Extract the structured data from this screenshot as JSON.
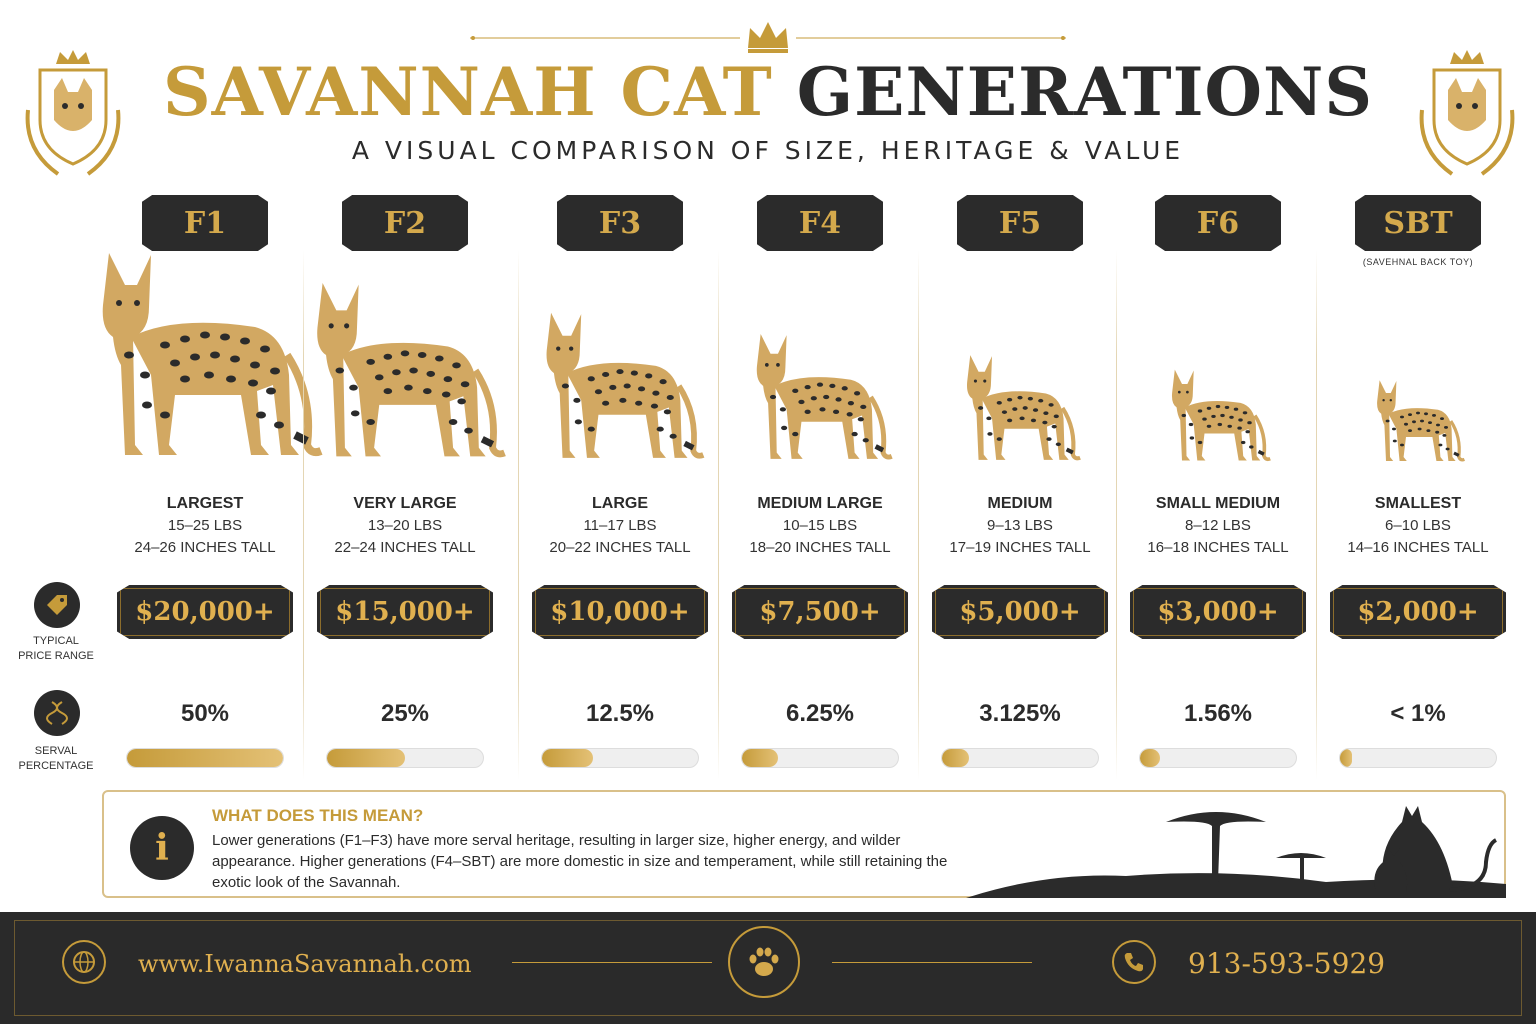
{
  "title": {
    "part1": "SAVANNAH CAT",
    "part2": "GENERATIONS"
  },
  "subtitle": "A VISUAL COMPARISON OF SIZE, HERITAGE & VALUE",
  "row_labels": {
    "price": "TYPICAL\nPRICE RANGE",
    "serval": "SERVAL\nPERCENTAGE"
  },
  "generations": [
    {
      "gen": "F1",
      "note": "",
      "size": "LARGEST",
      "weight": "15–25 LBS",
      "height": "24–26 INCHES TALL",
      "price": "$20,000+",
      "serval": "50%",
      "fill": 1.0
    },
    {
      "gen": "F2",
      "note": "",
      "size": "VERY LARGE",
      "weight": "13–20 LBS",
      "height": "22–24 INCHES TALL",
      "price": "$15,000+",
      "serval": "25%",
      "fill": 0.5
    },
    {
      "gen": "F3",
      "note": "",
      "size": "LARGE",
      "weight": "11–17 LBS",
      "height": "20–22 INCHES TALL",
      "price": "$10,000+",
      "serval": "12.5%",
      "fill": 0.33
    },
    {
      "gen": "F4",
      "note": "",
      "size": "MEDIUM LARGE",
      "weight": "10–15 LBS",
      "height": "18–20 INCHES TALL",
      "price": "$7,500+",
      "serval": "6.25%",
      "fill": 0.23
    },
    {
      "gen": "F5",
      "note": "",
      "size": "MEDIUM",
      "weight": "9–13 LBS",
      "height": "17–19 INCHES TALL",
      "price": "$5,000+",
      "serval": "3.125%",
      "fill": 0.17
    },
    {
      "gen": "F6",
      "note": "",
      "size": "SMALL MEDIUM",
      "weight": "8–12 LBS",
      "height": "16–18 INCHES TALL",
      "price": "$3,000+",
      "serval": "1.56%",
      "fill": 0.13
    },
    {
      "gen": "SBT",
      "note": "(SAVEHNAL BACK TOY)",
      "size": "SMALLEST",
      "weight": "6–10 LBS",
      "height": "14–16 INCHES TALL",
      "price": "$2,000+",
      "serval": "< 1%",
      "fill": 0.05
    }
  ],
  "info": {
    "title": "WHAT DOES THIS MEAN?",
    "text": "Lower generations (F1–F3) have more serval heritage, resulting in larger size, higher energy, and wilder appearance. Higher generations (F4–SBT) are more domestic in size and temperament, while still retaining the exotic look of the Savannah."
  },
  "footer": {
    "website": "www.IwannaSavannah.com",
    "phone": "913-593-5929"
  },
  "colors": {
    "gold": "#c59b3a",
    "dark": "#2b2b2b"
  },
  "icons": [
    "crown-icon",
    "cat-crest-icon",
    "price-tag-icon",
    "dna-icon",
    "info-icon",
    "globe-icon",
    "paw-icon",
    "phone-icon"
  ]
}
